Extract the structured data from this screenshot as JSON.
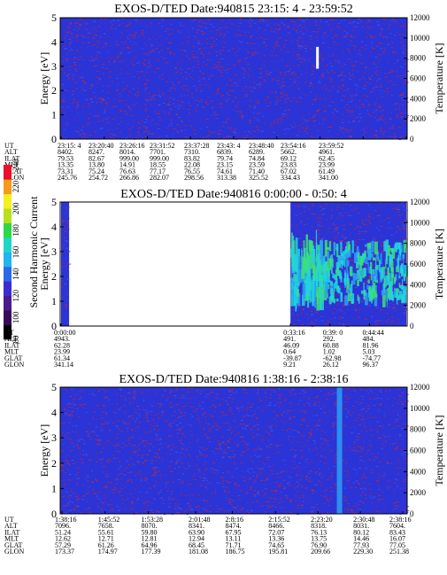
{
  "colors": {
    "background": "#2b34d6",
    "speckle_red": "#c02a3a",
    "speckle_purple": "#6a25b8",
    "cyan": "#1fd6e0",
    "green": "#3ce07a",
    "light_blue": "#2aa0f5"
  },
  "colorbar": {
    "label": "Second Harmonic Current",
    "ticks": [
      "80",
      "100",
      "120",
      "140",
      "160",
      "180",
      "200",
      "220",
      "240"
    ],
    "colors": [
      "#000000",
      "#3a0a5a",
      "#4b1a8c",
      "#3b2bd0",
      "#2a6ae8",
      "#21b4f0",
      "#1ed6c8",
      "#2ad84a",
      "#b8e01a",
      "#f5f020",
      "#f59a1a",
      "#e8102a"
    ]
  },
  "chart_data": [
    {
      "type": "heatmap",
      "title": "EXOS-D/TED   Date:940815  23:15: 4 - 23:59:52",
      "ylabel": "Energy [eV]",
      "ylabel_right": "Temperature [K]",
      "ylim": [
        0,
        5
      ],
      "ylim_right": [
        0,
        12000
      ],
      "yticks": [
        "0",
        "1",
        "2",
        "3",
        "4",
        "5"
      ],
      "yticks_right": [
        "0",
        "2000",
        "4000",
        "6000",
        "8000",
        "10000",
        "12000"
      ],
      "orbit_rows": [
        "UT",
        "ALT",
        "ILAT",
        "MLT",
        "GLAT",
        "GLON"
      ],
      "orbit_columns": [
        [
          "23:15: 4",
          "8402.",
          "79.53",
          "13.35",
          "73.31",
          "245.76"
        ],
        [
          "23:20:40",
          "8247.",
          "82.67",
          "13.80",
          "75.24",
          "254.72"
        ],
        [
          "23:26:16",
          "8014.",
          "999.00",
          "14.91",
          "76.63",
          "266.86"
        ],
        [
          "23:31:52",
          "7701.",
          "999.00",
          "18.55",
          "77.17",
          "282.07"
        ],
        [
          "23:37:28",
          "7310.",
          "83.82",
          "22.08",
          "76.55",
          "298.56"
        ],
        [
          "23:43: 4",
          "6839.",
          "79.74",
          "23.15",
          "74.61",
          "313.38"
        ],
        [
          "23:48:40",
          "6289.",
          "74.84",
          "23.59",
          "71.40",
          "325.52"
        ],
        [
          "23:54:16",
          "5662.",
          "69.12",
          "23.83",
          "67.02",
          "334.43"
        ],
        [
          "23:59:52",
          "4961.",
          "62.45",
          "23.99",
          "61.49",
          "341.00"
        ]
      ],
      "features": [
        {
          "x": "23:48:10",
          "energy_range": [
            2.9,
            3.8
          ],
          "color": "#ffffff"
        }
      ]
    },
    {
      "type": "heatmap",
      "title": "EXOS-D/TED   Date:940816  0:00:00 - 0:50: 4",
      "ylabel": "Energy [eV]",
      "ylabel_right": "Temperature [K]",
      "ylim": [
        0,
        5
      ],
      "ylim_right": [
        0,
        12000
      ],
      "yticks": [
        "0",
        "1",
        "2",
        "3",
        "4",
        "5"
      ],
      "yticks_right": [
        "0",
        "2000",
        "4000",
        "6000",
        "8000",
        "10000",
        "12000"
      ],
      "orbit_rows": [
        "UT",
        "ALT",
        "ILAT",
        "MLT",
        "GLAT",
        "GLON"
      ],
      "orbit_columns": [
        [
          "0:00:00",
          "4943.",
          "62.28",
          "23.99",
          "61.34",
          "341.14"
        ],
        [
          "0:33:16",
          "491.",
          "46.09",
          "0.64",
          "-39.87",
          "9.21"
        ],
        [
          "0:39: 0",
          "292.",
          "60.88",
          "1.02",
          "-62.98",
          "26.12"
        ],
        [
          "0:44:44",
          "484.",
          "81.96",
          "5.03",
          "-74.77",
          "96.37"
        ]
      ],
      "data_segments": [
        {
          "from": "0:00:00",
          "to": "0:01:10"
        },
        {
          "from": "0:33:16",
          "to": "0:50: 4"
        }
      ]
    },
    {
      "type": "heatmap",
      "title": "EXOS-D/TED   Date:940816  1:38:16 - 2:38:16",
      "ylabel": "Energy [eV]",
      "ylabel_right": "Temperature [K]",
      "ylim": [
        0,
        5
      ],
      "ylim_right": [
        0,
        12000
      ],
      "yticks": [
        "0",
        "1",
        "2",
        "3",
        "4",
        "5"
      ],
      "yticks_right": [
        "0",
        "2000",
        "4000",
        "6000",
        "8000",
        "10000",
        "12000"
      ],
      "orbit_rows": [
        "UT",
        "ALT",
        "ILAT",
        "MLT",
        "GLAT",
        "GLON"
      ],
      "orbit_columns": [
        [
          "1:38:16",
          "7096.",
          "51.24",
          "12.62",
          "57.29",
          "173.37"
        ],
        [
          "1:45:52",
          "7658.",
          "55.61",
          "12.71",
          "61.26",
          "174.97"
        ],
        [
          "1:53:28",
          "8070.",
          "59.80",
          "12.81",
          "64.96",
          "177.39"
        ],
        [
          "2:01:48",
          "8341.",
          "63.90",
          "12.94",
          "68.45",
          "181.08"
        ],
        [
          "2:8:16",
          "8474.",
          "67.95",
          "13.11",
          "71.71",
          "186.75"
        ],
        [
          "2:15:52",
          "8466.",
          "72.07",
          "13.36",
          "74.65",
          "195.81"
        ],
        [
          "2:23:20",
          "8318.",
          "76.13",
          "13.75",
          "76.90",
          "209.66"
        ],
        [
          "2:30:48",
          "8031.",
          "80.12",
          "14.46",
          "77.93",
          "229.30"
        ],
        [
          "2:38:16",
          "7604.",
          "83.43",
          "16.07",
          "77.05",
          "251.38"
        ]
      ],
      "features": [
        {
          "x": "2:26:40",
          "energy_range": [
            0,
            5
          ],
          "color": "#2aa0f5"
        }
      ]
    }
  ]
}
